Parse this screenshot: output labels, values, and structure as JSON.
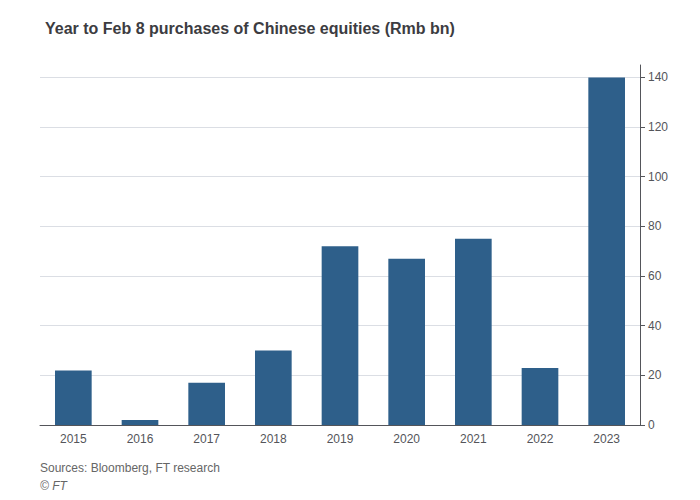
{
  "chart_data": {
    "type": "bar",
    "title": "Year to Feb 8 purchases of Chinese equities (Rmb bn)",
    "categories": [
      "2015",
      "2016",
      "2017",
      "2018",
      "2019",
      "2020",
      "2021",
      "2022",
      "2023"
    ],
    "values": [
      22,
      2,
      17,
      30,
      72,
      67,
      75,
      23,
      140
    ],
    "color": "#2e5f8a",
    "ylim": [
      0,
      145
    ],
    "yticks": [
      0,
      20,
      40,
      60,
      80,
      100,
      120,
      140
    ],
    "grid": true,
    "annotations": [
      "Sources: Bloomberg, FT research",
      "© FT"
    ]
  }
}
